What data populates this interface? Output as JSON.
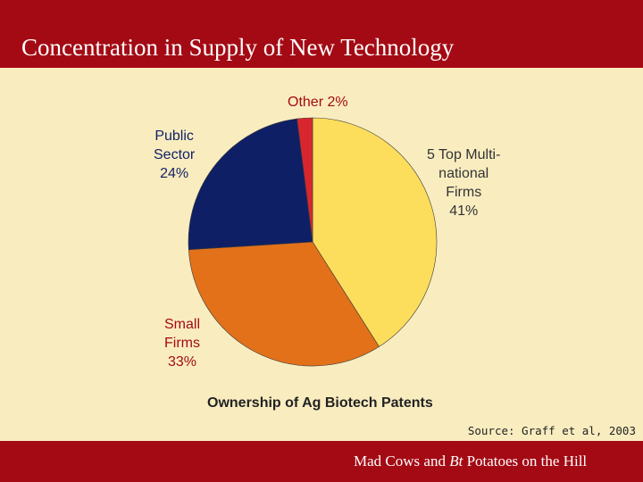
{
  "slide": {
    "title": "Concentration in Supply of New Technology",
    "footer_pre": "Mad Cows and ",
    "footer_em": "Bt",
    "footer_post": " Potatoes on the Hill"
  },
  "source": "Source: Graff et al, 2003",
  "colors": {
    "title_bar": "#a40a14",
    "background": "#f9edc0",
    "label_text": "#a40a14"
  },
  "chart_data": {
    "type": "pie",
    "title": "Ownership of Ag Biotech Patents",
    "slices": [
      {
        "label_lines": [
          "5 Top Multi-",
          "national",
          "Firms",
          "41%"
        ],
        "value": 41,
        "color": "#fddd5c"
      },
      {
        "label_lines": [
          "Small",
          "Firms",
          "33%"
        ],
        "value": 33,
        "color": "#e2711a"
      },
      {
        "label_lines": [
          "Public",
          "Sector",
          "24%"
        ],
        "value": 24,
        "color": "#0f1f66"
      },
      {
        "label_lines": [
          "Other 2%"
        ],
        "value": 2,
        "color": "#d8262e"
      }
    ]
  }
}
